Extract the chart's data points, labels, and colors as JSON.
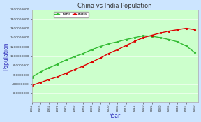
{
  "title": "China vs India Population",
  "xlabel": "Year",
  "ylabel": "Population",
  "bg_outer": "#cce5ff",
  "bg_plot": "#ccffcc",
  "title_color": "#333333",
  "xlabel_color": "#3333bb",
  "ylabel_color": "#3333bb",
  "china_color": "#33bb33",
  "india_color": "#dd0000",
  "years": [
    1955,
    1960,
    1965,
    1970,
    1975,
    1980,
    1985,
    1990,
    1995,
    2000,
    2005,
    2010,
    2015,
    2020,
    2025,
    2030,
    2035,
    2040,
    2045,
    2050
  ],
  "china_pop": [
    550000000,
    660000000,
    750000000,
    830000000,
    920000000,
    990000000,
    1060000000,
    1140000000,
    1210000000,
    1270000000,
    1310000000,
    1360000000,
    1400000000,
    1440000000,
    1430000000,
    1400000000,
    1360000000,
    1310000000,
    1220000000,
    1080000000
  ],
  "india_pop": [
    370000000,
    435000000,
    497000000,
    558000000,
    635000000,
    710000000,
    790000000,
    875000000,
    960000000,
    1060000000,
    1140000000,
    1230000000,
    1320000000,
    1400000000,
    1450000000,
    1500000000,
    1540000000,
    1570000000,
    1600000000,
    1570000000
  ],
  "ylim": [
    0,
    2000000000
  ],
  "ytick_values": [
    200000000,
    400000000,
    600000000,
    800000000,
    1000000000,
    1200000000,
    1400000000,
    1600000000,
    1800000000,
    2000000000
  ],
  "ytick_labels": [
    "200000000",
    "400000000",
    "600000000",
    "800000000",
    "1000000000",
    "1200000000",
    "1400000000",
    "1600000000",
    "1800000000",
    "2000000000"
  ],
  "xlim_start": 1955,
  "xlim_end": 2052,
  "xtick_start": 1955,
  "xtick_end": 2051,
  "xtick_step": 5,
  "legend_china": "China",
  "legend_india": "India",
  "grid_color": "#ffffff",
  "grid_alpha": 0.8
}
